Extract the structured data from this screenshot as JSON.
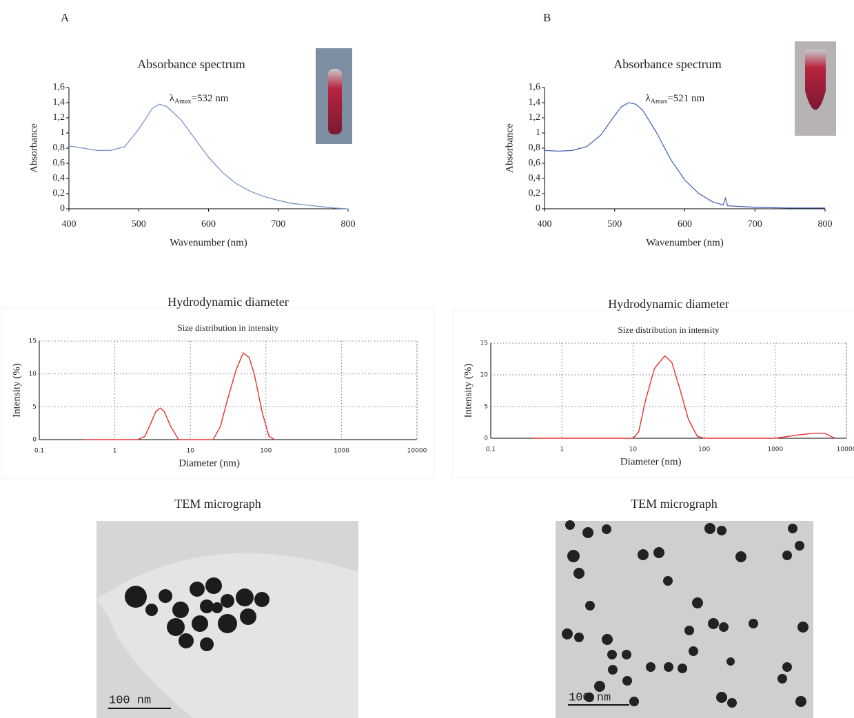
{
  "panels": [
    {
      "label": "A",
      "tem_title": "TEM micrograph",
      "scale_bar": "100 nm"
    },
    {
      "label": "B",
      "tem_title": "TEM micrograph",
      "scale_bar": "100 nm"
    }
  ],
  "chart_data": [
    {
      "type": "line",
      "title": "Absorbance spectrum",
      "xlabel": "Wavenumber (nm)",
      "ylabel": "Absorbance",
      "annotation": [
        "λ",
        "Amax",
        "=532 nm"
      ],
      "x": [
        400,
        420,
        440,
        460,
        480,
        500,
        520,
        530,
        540,
        560,
        580,
        600,
        620,
        640,
        660,
        680,
        700,
        720,
        740,
        760,
        780,
        800
      ],
      "series": [
        {
          "color": "#7b93c9",
          "values": [
            0.83,
            0.8,
            0.77,
            0.77,
            0.82,
            1.05,
            1.33,
            1.38,
            1.35,
            1.18,
            0.93,
            0.68,
            0.48,
            0.33,
            0.23,
            0.16,
            0.11,
            0.07,
            0.05,
            0.03,
            0.01,
            0.0
          ]
        }
      ],
      "xlim": [
        400,
        800
      ],
      "xticks": [
        400,
        500,
        600,
        700,
        800
      ],
      "ylim": [
        0,
        1.6
      ],
      "yticks": [
        0,
        {
          "value": 0.2,
          "label": "0,2"
        },
        {
          "value": 0.4,
          "label": "0,4"
        },
        {
          "value": 0.6,
          "label": "0,6"
        },
        {
          "value": 0.8,
          "label": "0,8"
        },
        1,
        {
          "value": 1.2,
          "label": "1,2"
        },
        {
          "value": 1.4,
          "label": "1,4"
        },
        {
          "value": 1.6,
          "label": "1,6"
        }
      ],
      "grid": false
    },
    {
      "type": "line",
      "title": "Absorbance spectrum",
      "xlabel": "Wavenumber (nm)",
      "ylabel": "Absorbance",
      "annotation": [
        "λ",
        "Amax",
        "=521 nm"
      ],
      "x": [
        400,
        420,
        440,
        460,
        480,
        500,
        510,
        520,
        530,
        540,
        560,
        580,
        600,
        620,
        640,
        655,
        658,
        661,
        680,
        700,
        750,
        800
      ],
      "series": [
        {
          "color": "#4a68b5",
          "values": [
            0.77,
            0.76,
            0.77,
            0.82,
            0.97,
            1.23,
            1.35,
            1.4,
            1.38,
            1.3,
            1.0,
            0.65,
            0.38,
            0.2,
            0.09,
            0.05,
            0.14,
            0.04,
            0.03,
            0.02,
            0.01,
            0.01
          ]
        }
      ],
      "xlim": [
        400,
        800
      ],
      "xticks": [
        400,
        500,
        600,
        700,
        800
      ],
      "ylim": [
        0,
        1.6
      ],
      "yticks": [
        0,
        {
          "value": 0.2,
          "label": "0,2"
        },
        {
          "value": 0.4,
          "label": "0,4"
        },
        {
          "value": 0.6,
          "label": "0,6"
        },
        {
          "value": 0.8,
          "label": "0,8"
        },
        1,
        {
          "value": 1.2,
          "label": "1,2"
        },
        {
          "value": 1.4,
          "label": "1,4"
        },
        {
          "value": 1.6,
          "label": "1,6"
        }
      ],
      "grid": false
    },
    {
      "type": "line",
      "title": "Hydrodynamic diameter",
      "subtitle": "Size distribution in intensity",
      "xlabel": "Diameter (nm)",
      "ylabel": "Intensity (%)",
      "x": [
        0.4,
        2,
        2.5,
        3,
        3.5,
        4,
        4.5,
        5.5,
        7,
        20,
        25,
        30,
        40,
        50,
        60,
        70,
        90,
        110,
        130
      ],
      "series": [
        {
          "color": "#e8302c",
          "values": [
            0,
            0,
            0.5,
            2.5,
            4.3,
            4.8,
            4.3,
            2,
            0,
            0,
            2,
            5.5,
            10.5,
            13.2,
            12.5,
            10,
            4,
            0.5,
            0
          ]
        }
      ],
      "xscale": "log",
      "xlim": [
        0.1,
        10000
      ],
      "xticks": [
        0.1,
        1,
        10,
        100,
        1000,
        10000
      ],
      "ylim": [
        0,
        15
      ],
      "yticks": [
        0,
        5,
        10,
        15
      ],
      "grid": true
    },
    {
      "type": "line",
      "title": "Hydrodynamic diameter",
      "subtitle": "Size distribution in intensity",
      "xlabel": "Diameter (nm)",
      "ylabel": "Intensity (%)",
      "x": [
        0.4,
        10,
        12,
        15,
        20,
        28,
        35,
        45,
        60,
        80,
        100,
        1000,
        2000,
        3500,
        5000,
        6000,
        7000
      ],
      "series": [
        {
          "color": "#e8302c",
          "values": [
            0,
            0,
            1,
            6,
            11,
            13,
            12,
            8,
            3,
            0.3,
            0,
            0,
            0.5,
            0.8,
            0.8,
            0.3,
            0
          ]
        }
      ],
      "xscale": "log",
      "xlim": [
        0.1,
        10000
      ],
      "xticks": [
        0.1,
        1,
        10,
        100,
        1000,
        10000
      ],
      "ylim": [
        0,
        15
      ],
      "yticks": [
        0,
        5,
        10,
        15
      ],
      "grid": true
    }
  ]
}
